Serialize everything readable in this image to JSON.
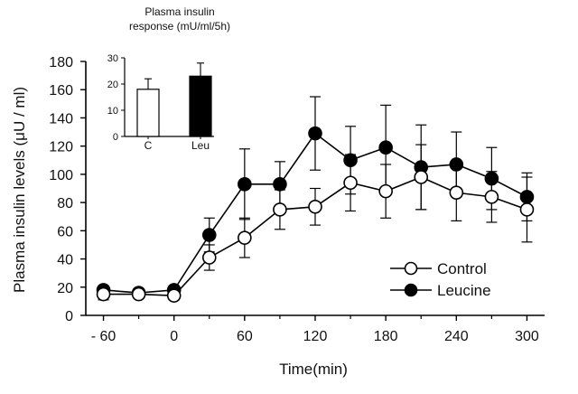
{
  "chart_data": [
    {
      "type": "line",
      "title": "",
      "xlabel": "Time(min)",
      "ylabel": "Plasma insulin levels (μU / ml)",
      "x_ticks": [
        "- 60",
        "0",
        "60",
        "120",
        "180",
        "240",
        "300"
      ],
      "x_tick_values": [
        -60,
        0,
        60,
        120,
        180,
        240,
        300
      ],
      "y_ticks": [
        "0",
        "20",
        "40",
        "60",
        "80",
        "100",
        "120",
        "140",
        "160",
        "180"
      ],
      "xlim": [
        -75,
        315
      ],
      "ylim": [
        0,
        180
      ],
      "grid": false,
      "legend_position": "bottom-right",
      "series": [
        {
          "name": "Control",
          "marker": "open-circle",
          "color": "#000000",
          "x": [
            -60,
            -30,
            0,
            30,
            60,
            90,
            120,
            150,
            180,
            210,
            240,
            270,
            300
          ],
          "y": [
            15,
            15,
            14,
            41,
            55,
            75,
            77,
            94,
            88,
            98,
            87,
            84,
            75
          ],
          "err": [
            4,
            3,
            3,
            9,
            14,
            14,
            13,
            20,
            19,
            23,
            20,
            18,
            23
          ]
        },
        {
          "name": "Leucine",
          "marker": "filled-circle",
          "color": "#000000",
          "x": [
            -60,
            -30,
            0,
            30,
            60,
            90,
            120,
            150,
            180,
            210,
            240,
            270,
            300
          ],
          "y": [
            18,
            16,
            18,
            57,
            93,
            93,
            129,
            110,
            119,
            105,
            107,
            97,
            84
          ],
          "err": [
            3,
            3,
            3,
            12,
            25,
            16,
            26,
            24,
            30,
            30,
            23,
            22,
            17
          ]
        }
      ]
    },
    {
      "type": "bar",
      "title": "Plasma insulin response (mU/ml/5h)",
      "title_lines": [
        "Plasma insulin",
        "response (mU/ml/5h)"
      ],
      "categories": [
        "C",
        "Leu"
      ],
      "values": [
        18,
        23
      ],
      "err": [
        4,
        5
      ],
      "bar_colors": [
        "#ffffff",
        "#000000"
      ],
      "y_ticks": [
        "0",
        "10",
        "20",
        "30"
      ],
      "ylim": [
        0,
        30
      ]
    }
  ]
}
